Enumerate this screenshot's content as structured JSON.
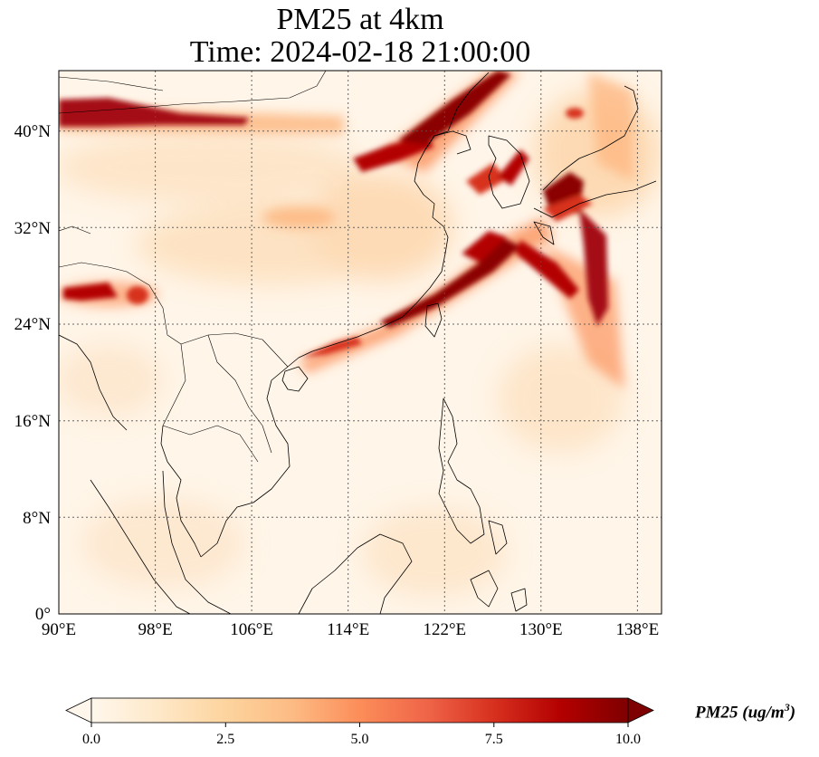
{
  "title": {
    "line1": "PM25 at 4km",
    "line2": "Time: 2024-02-18 21:00:00"
  },
  "map": {
    "lon_ticks": [
      "90°E",
      "98°E",
      "106°E",
      "114°E",
      "122°E",
      "130°E",
      "138°E"
    ],
    "lat_ticks": [
      "40°N",
      "32°N",
      "24°N",
      "16°N",
      "8°N",
      "0°"
    ],
    "extent": {
      "lon": [
        90,
        140
      ],
      "lat": [
        0,
        45
      ]
    },
    "gridlines": true,
    "colormap": "OrRd"
  },
  "colorbar": {
    "ticks": [
      "0.0",
      "2.5",
      "5.0",
      "7.5",
      "10.0"
    ],
    "range": [
      0,
      10
    ],
    "extend": "both",
    "label_main": "PM25 (ug/m",
    "label_sup": "3",
    "label_end": ")",
    "colors": [
      "#fff7ec",
      "#fee8c8",
      "#fdd49e",
      "#fdbb84",
      "#fc8d59",
      "#ef6548",
      "#d7301f",
      "#b30000",
      "#7f0000"
    ]
  }
}
